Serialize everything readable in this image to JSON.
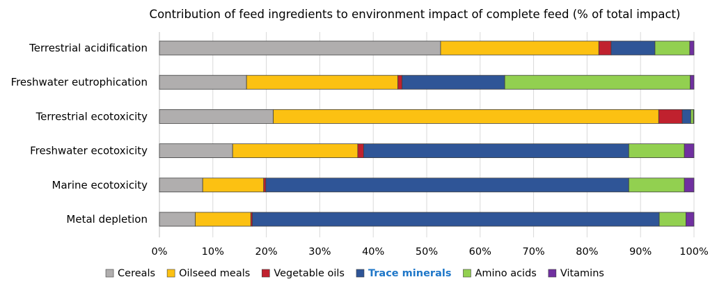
{
  "chart_data": {
    "type": "bar",
    "orientation": "horizontal",
    "stacked": true,
    "title": "Contribution of feed ingredients to environment impact of complete feed (% of total impact)",
    "xlim": [
      0,
      100
    ],
    "x_ticks": [
      "0%",
      "10%",
      "20%",
      "30%",
      "40%",
      "50%",
      "60%",
      "70%",
      "80%",
      "90%",
      "100%"
    ],
    "grid": true,
    "legend_position": "bottom",
    "categories": [
      "Terrestrial acidification",
      "Freshwater eutrophication",
      "Terrestrial ecotoxicity",
      "Freshwater ecotoxicity",
      "Marine ecotoxicity",
      "Metal depletion"
    ],
    "series": [
      {
        "name": "Cereals",
        "color": "#b0aeae",
        "values": [
          52.6,
          16.3,
          21.3,
          13.7,
          8.1,
          6.7
        ]
      },
      {
        "name": "Oilseed meals",
        "color": "#fcc112",
        "values": [
          29.6,
          28.3,
          72.1,
          23.4,
          11.4,
          10.4
        ]
      },
      {
        "name": "Vegetable oils",
        "color": "#c0212e",
        "values": [
          2.3,
          0.8,
          4.4,
          1.1,
          0.4,
          0.3
        ]
      },
      {
        "name": "Trace minerals",
        "color": "#2f5597",
        "values": [
          8.2,
          19.2,
          1.6,
          49.6,
          67.9,
          76.1
        ],
        "highlight": true
      },
      {
        "name": "Amino acids",
        "color": "#92d050",
        "values": [
          6.5,
          34.7,
          0.5,
          10.4,
          10.4,
          5.0
        ]
      },
      {
        "name": "Vitamins",
        "color": "#7030a0",
        "values": [
          0.8,
          0.7,
          0.1,
          1.8,
          1.8,
          1.5
        ]
      }
    ]
  }
}
